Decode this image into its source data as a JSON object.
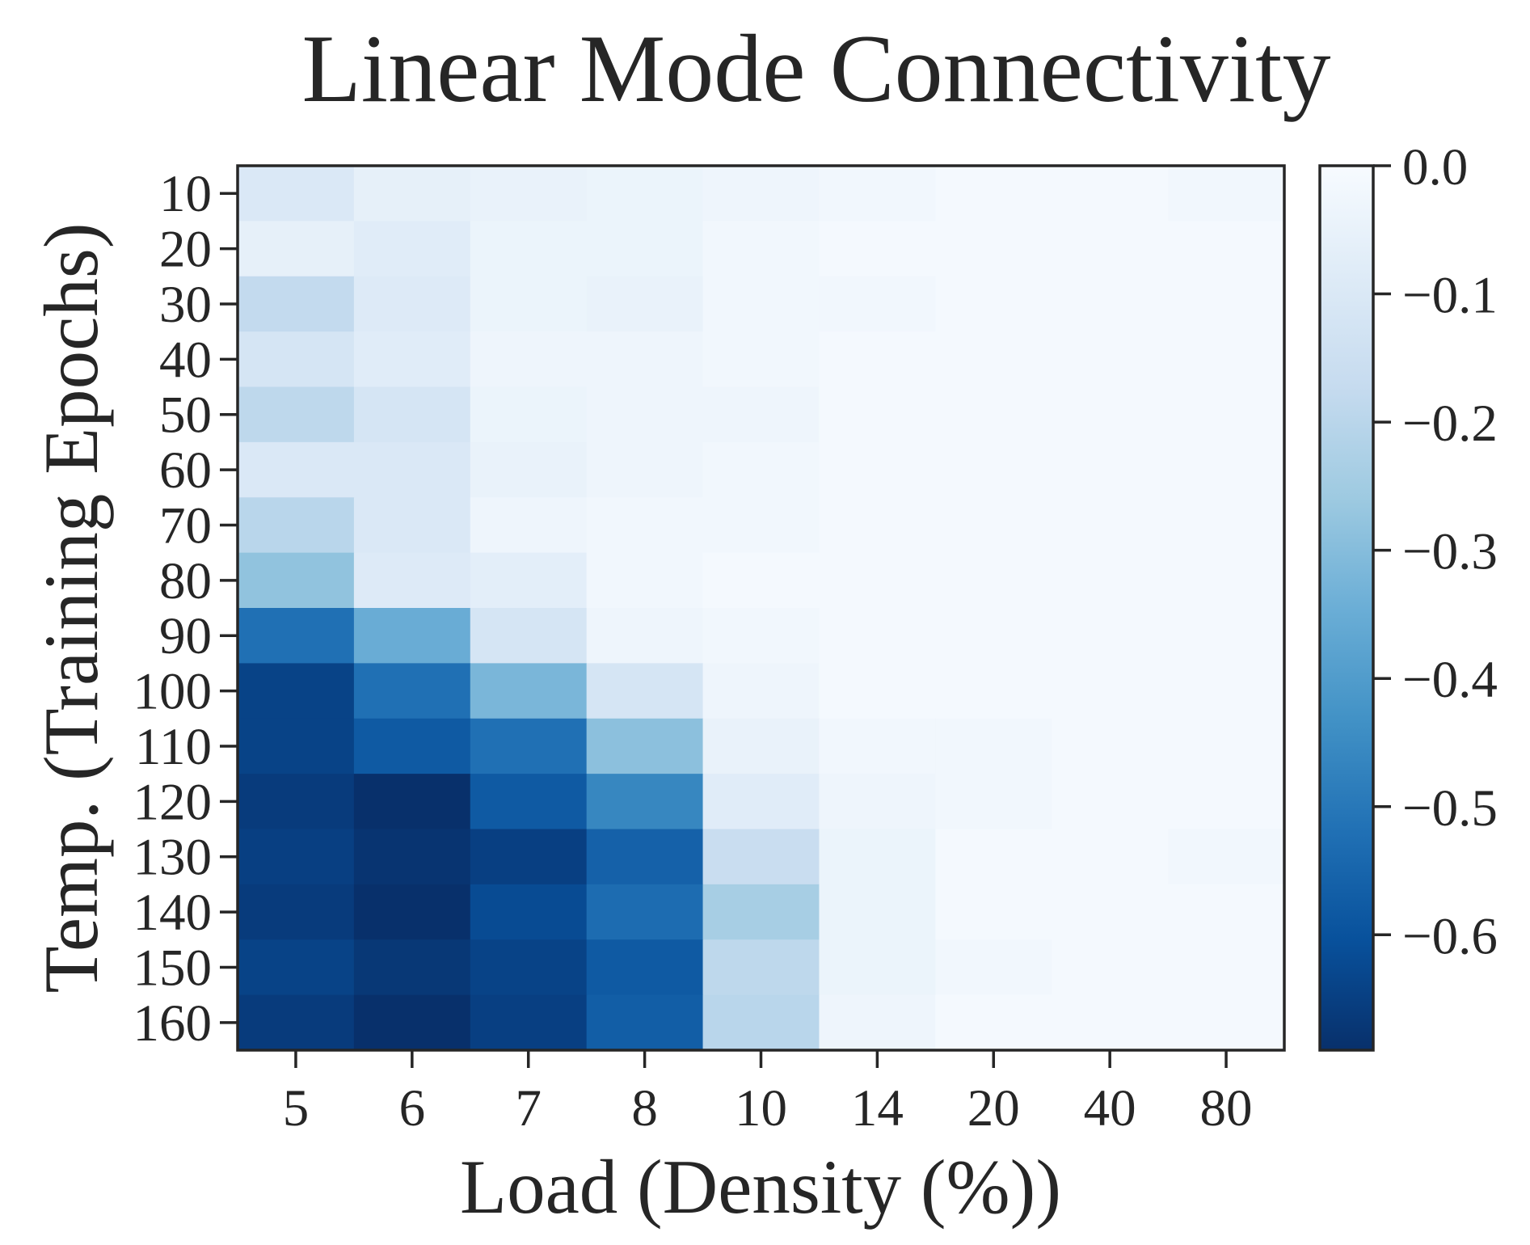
{
  "chart_data": {
    "type": "heatmap",
    "title": "Linear Mode Connectivity",
    "xlabel": "Load (Density (%))",
    "ylabel": "Temp. (Training Epochs)",
    "x_categories": [
      "5",
      "6",
      "7",
      "8",
      "10",
      "14",
      "20",
      "40",
      "80"
    ],
    "y_categories": [
      "10",
      "20",
      "30",
      "40",
      "50",
      "60",
      "70",
      "80",
      "90",
      "100",
      "110",
      "120",
      "130",
      "140",
      "150",
      "160"
    ],
    "values": [
      [
        -0.1,
        -0.06,
        -0.05,
        -0.04,
        -0.03,
        -0.02,
        -0.01,
        -0.01,
        -0.02
      ],
      [
        -0.06,
        -0.08,
        -0.04,
        -0.04,
        -0.02,
        -0.01,
        -0.01,
        -0.01,
        -0.01
      ],
      [
        -0.18,
        -0.09,
        -0.04,
        -0.05,
        -0.02,
        -0.02,
        -0.01,
        -0.01,
        -0.01
      ],
      [
        -0.12,
        -0.08,
        -0.03,
        -0.03,
        -0.02,
        -0.01,
        -0.01,
        -0.01,
        -0.01
      ],
      [
        -0.19,
        -0.12,
        -0.04,
        -0.03,
        -0.03,
        -0.01,
        -0.01,
        -0.01,
        -0.01
      ],
      [
        -0.1,
        -0.1,
        -0.05,
        -0.03,
        -0.02,
        -0.01,
        -0.01,
        -0.01,
        -0.01
      ],
      [
        -0.2,
        -0.1,
        -0.03,
        -0.02,
        -0.02,
        -0.01,
        -0.01,
        -0.01,
        -0.01
      ],
      [
        -0.28,
        -0.09,
        -0.07,
        -0.02,
        -0.01,
        -0.01,
        -0.01,
        -0.01,
        -0.01
      ],
      [
        -0.52,
        -0.35,
        -0.12,
        -0.03,
        -0.02,
        -0.01,
        -0.01,
        -0.01,
        -0.01
      ],
      [
        -0.64,
        -0.52,
        -0.32,
        -0.12,
        -0.03,
        -0.01,
        -0.01,
        -0.01,
        -0.01
      ],
      [
        -0.64,
        -0.58,
        -0.52,
        -0.29,
        -0.05,
        -0.02,
        -0.02,
        -0.01,
        -0.01
      ],
      [
        -0.66,
        -0.69,
        -0.58,
        -0.46,
        -0.08,
        -0.03,
        -0.02,
        -0.01,
        -0.01
      ],
      [
        -0.65,
        -0.68,
        -0.65,
        -0.56,
        -0.16,
        -0.04,
        -0.01,
        -0.01,
        -0.02
      ],
      [
        -0.66,
        -0.71,
        -0.62,
        -0.53,
        -0.24,
        -0.04,
        -0.01,
        -0.01,
        -0.01
      ],
      [
        -0.64,
        -0.67,
        -0.64,
        -0.58,
        -0.19,
        -0.04,
        -0.02,
        -0.01,
        -0.01
      ],
      [
        -0.66,
        -0.69,
        -0.65,
        -0.57,
        -0.2,
        -0.03,
        -0.01,
        -0.01,
        -0.01
      ]
    ],
    "colorbar": {
      "vmin": -0.69,
      "vmax": 0.0,
      "ticks": [
        0.0,
        -0.1,
        -0.2,
        -0.3,
        -0.4,
        -0.5,
        -0.6
      ],
      "tick_labels": [
        "0.0",
        "−0.1",
        "−0.2",
        "−0.3",
        "−0.4",
        "−0.5",
        "−0.6"
      ],
      "colormap": "Blues_r",
      "color_stops": [
        "#08306b",
        "#08519c",
        "#2171b5",
        "#4292c6",
        "#6baed6",
        "#9ecae1",
        "#c6dbef",
        "#deebf7",
        "#f7fbff"
      ]
    },
    "grid": false
  }
}
